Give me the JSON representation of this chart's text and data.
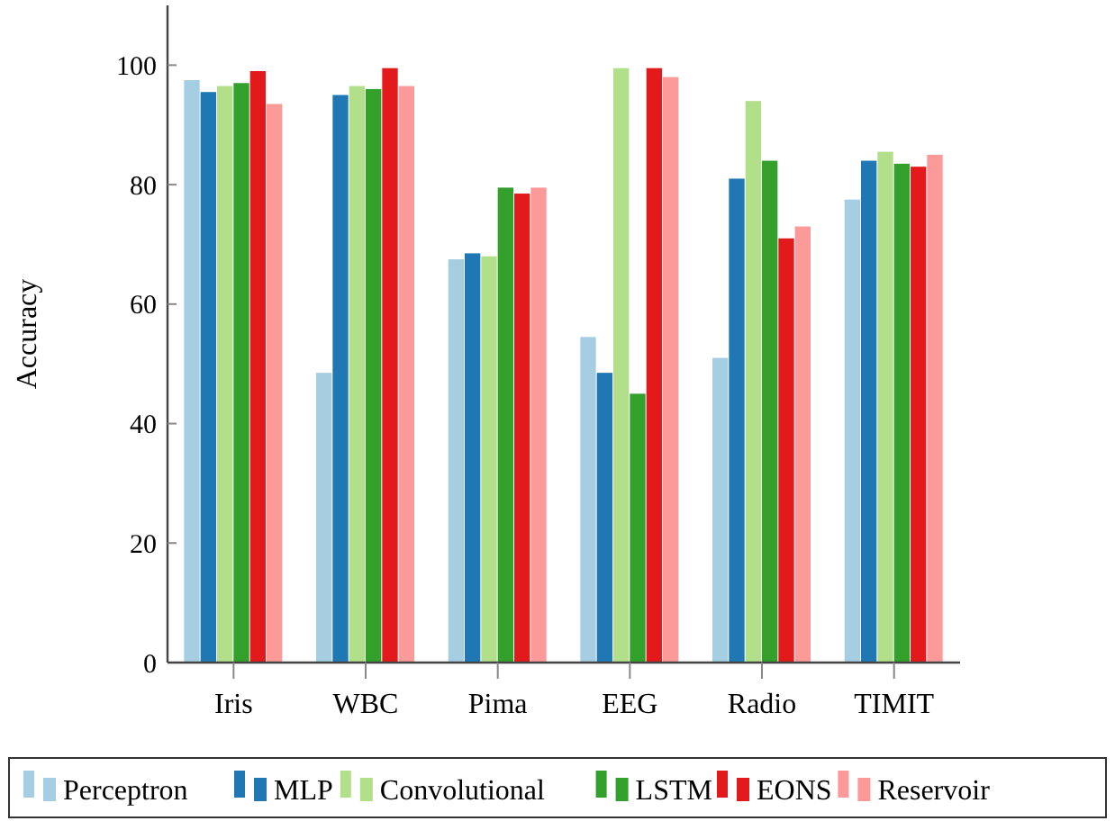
{
  "chart_data": {
    "type": "bar",
    "ylabel": "Accuracy",
    "categories": [
      "Iris",
      "WBC",
      "Pima",
      "EEG",
      "Radio",
      "TIMIT"
    ],
    "ylim": [
      0,
      110
    ],
    "yticks": [
      0,
      20,
      40,
      60,
      80,
      100
    ],
    "grid": false,
    "legend": "bottom",
    "series": [
      {
        "name": "Perceptron",
        "color": "#a6cee3",
        "values": [
          97.5,
          48.5,
          67.5,
          54.5,
          51,
          77.5
        ]
      },
      {
        "name": "MLP",
        "color": "#1f78b4",
        "values": [
          95.5,
          95,
          68.5,
          48.5,
          81,
          84
        ]
      },
      {
        "name": "Convolutional",
        "color": "#b2df8a",
        "values": [
          96.5,
          96.5,
          68,
          99.5,
          94,
          85.5
        ]
      },
      {
        "name": "LSTM",
        "color": "#33a02c",
        "values": [
          97,
          96,
          79.5,
          45,
          84,
          83.5
        ]
      },
      {
        "name": "EONS",
        "color": "#e31a1c",
        "values": [
          99,
          99.5,
          78.5,
          99.5,
          71,
          83
        ]
      },
      {
        "name": "Reservoir",
        "color": "#fb9a99",
        "values": [
          93.5,
          96.5,
          79.5,
          98,
          73,
          85
        ]
      }
    ]
  }
}
